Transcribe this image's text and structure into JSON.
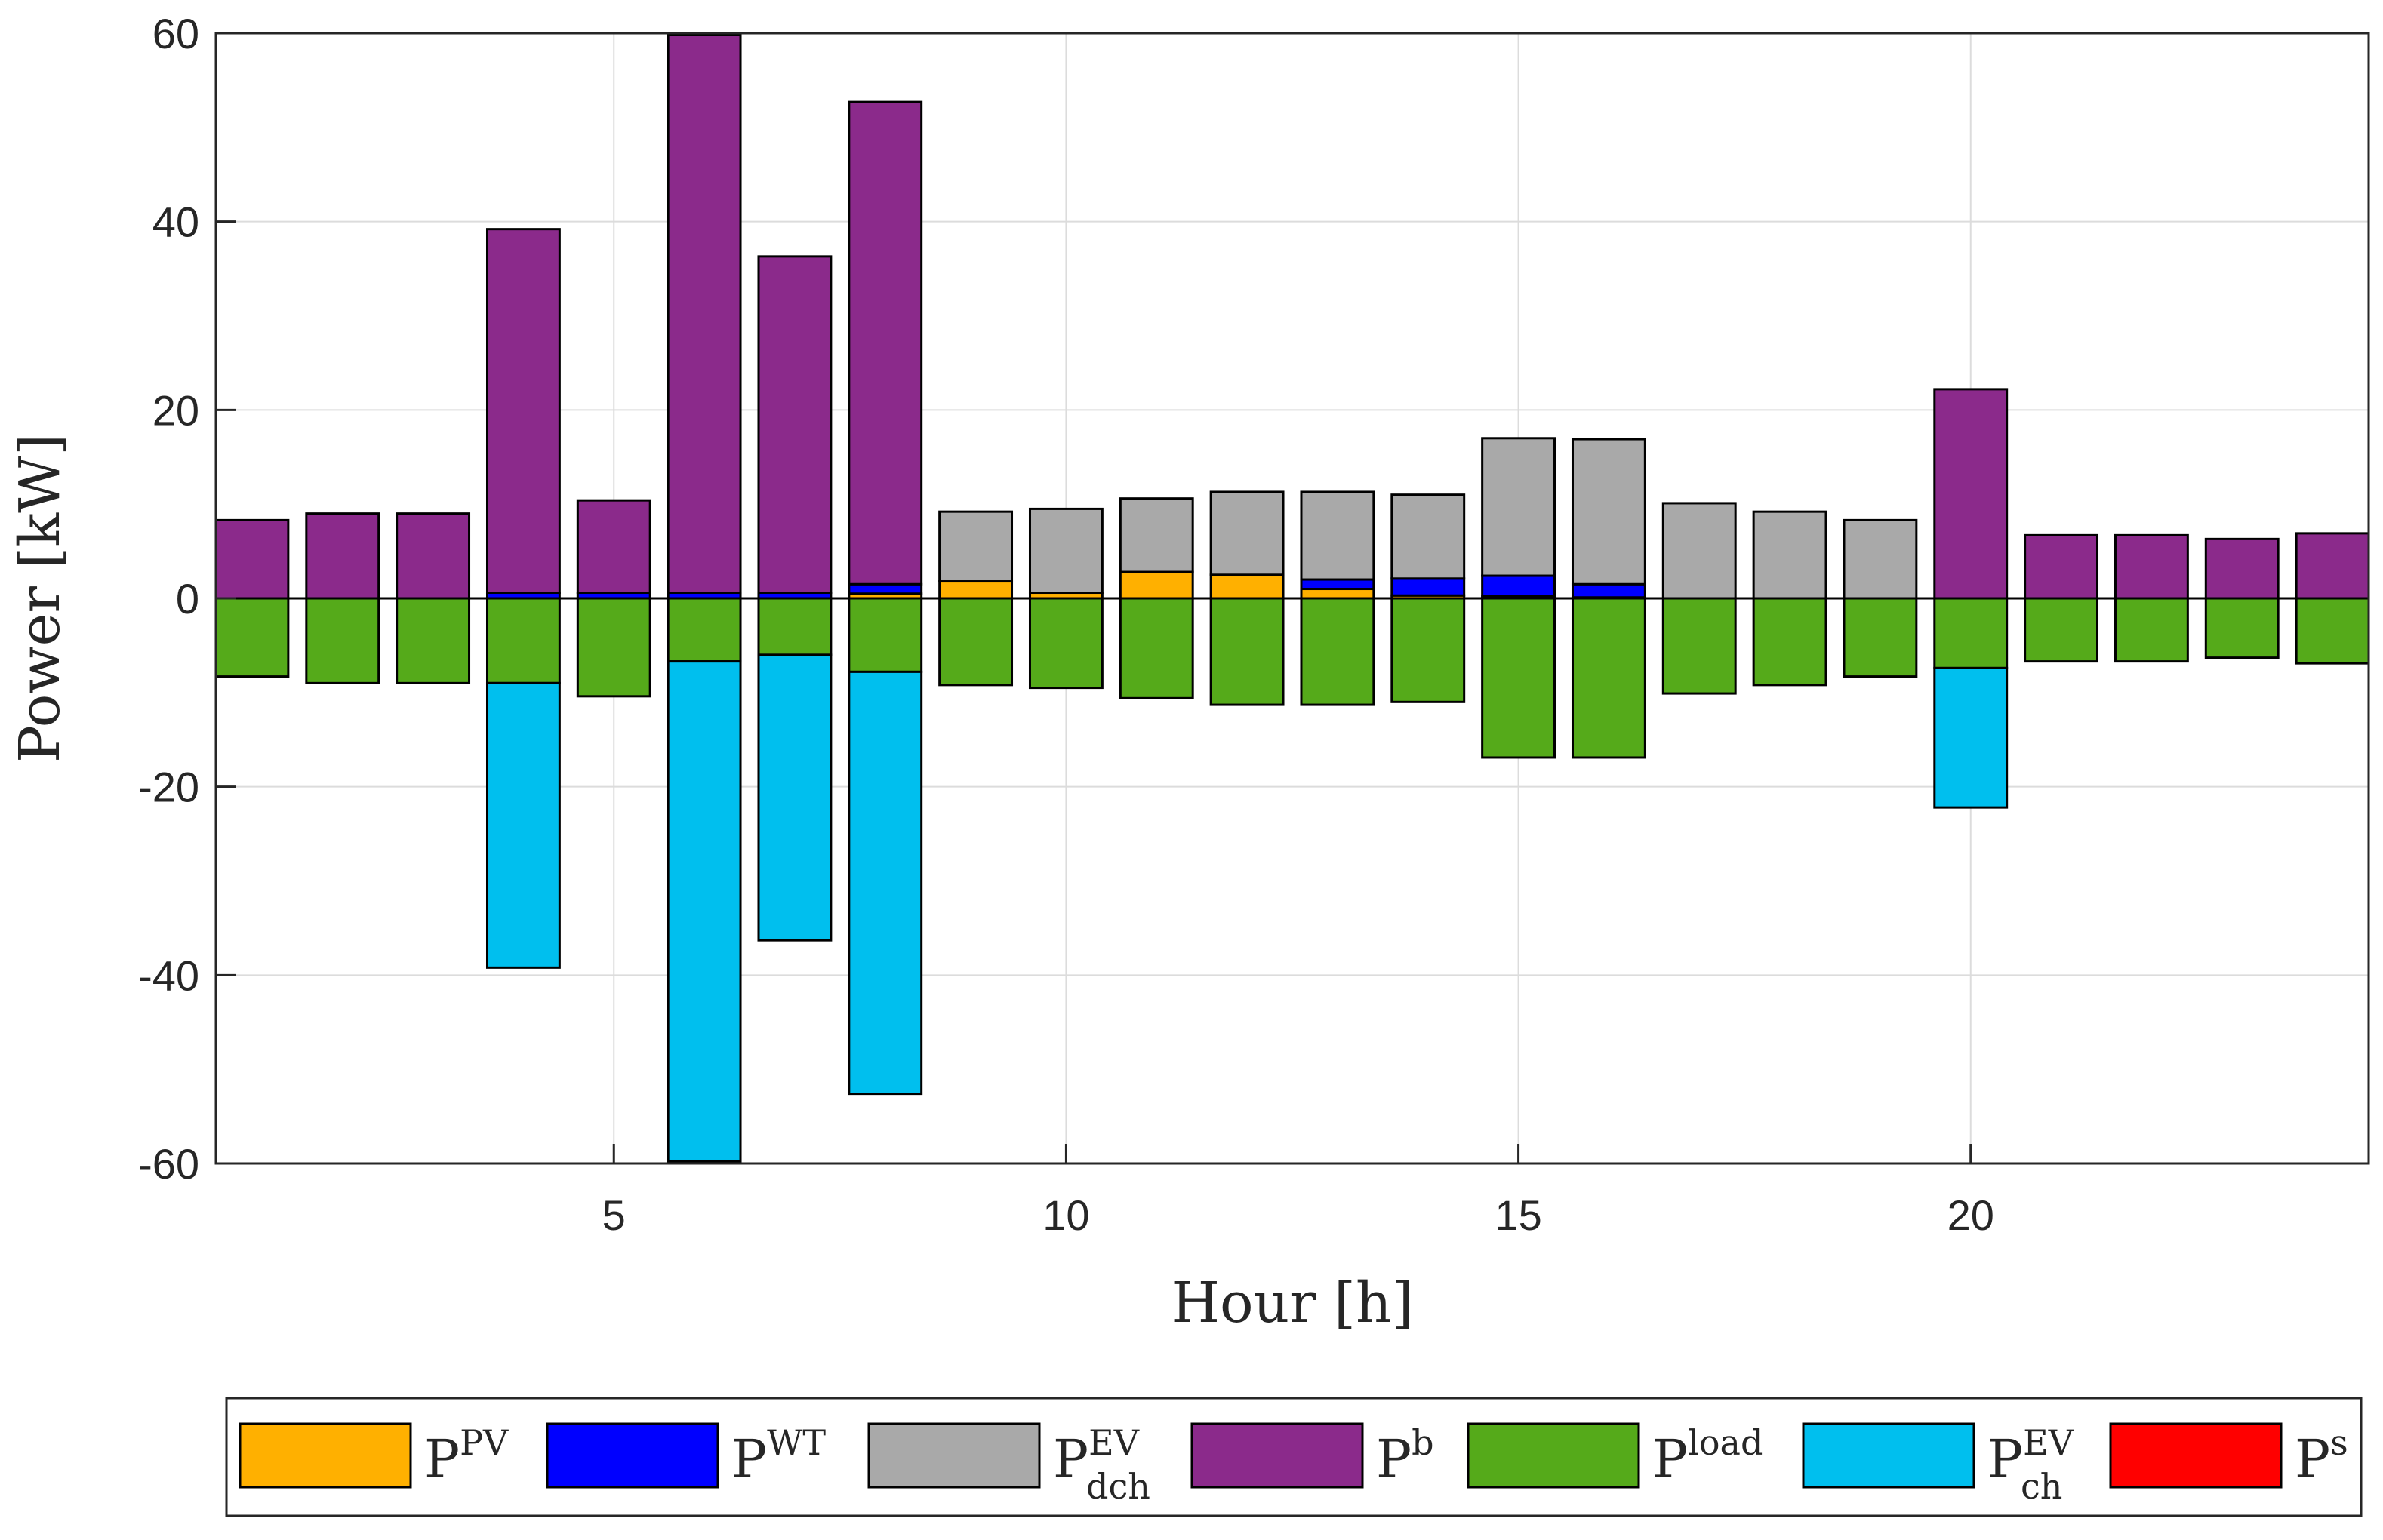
{
  "chart_data": {
    "type": "bar",
    "stacked": true,
    "title": "",
    "xlabel": "Hour [h]",
    "ylabel": "Power [kW]",
    "ylim": [
      -60,
      60
    ],
    "xlim": [
      0.6,
      24.4
    ],
    "yticks": [
      60,
      40,
      20,
      0,
      -20,
      -40,
      -60
    ],
    "ytick_labels": [
      "60",
      "40",
      "20",
      "0",
      "-20",
      "-40",
      "-60"
    ],
    "xticks": [
      5,
      10,
      15,
      20
    ],
    "xtick_labels": [
      "5",
      "10",
      "15",
      "20"
    ],
    "grid": true,
    "legend_position": "bottom",
    "x": [
      1,
      2,
      3,
      4,
      5,
      6,
      7,
      8,
      9,
      10,
      11,
      12,
      13,
      14,
      15,
      16,
      17,
      18,
      19,
      20,
      21,
      22,
      23,
      24
    ],
    "series": [
      {
        "key": "pv",
        "name": "P",
        "sup": "PV",
        "sub": "",
        "color": "#FFB000",
        "values": [
          0,
          0,
          0,
          0,
          0,
          0,
          0,
          0.5,
          1.8,
          0.6,
          2.8,
          2.5,
          1.0,
          0.3,
          0.2,
          0.1,
          0,
          0,
          0,
          0,
          0,
          0,
          0,
          0
        ]
      },
      {
        "key": "wt",
        "name": "P",
        "sup": "WT",
        "sub": "",
        "color": "#0000FF",
        "values": [
          0,
          0,
          0,
          0.6,
          0.6,
          0.6,
          0.6,
          1.0,
          0,
          0,
          0,
          0,
          1.0,
          1.8,
          2.2,
          1.4,
          0,
          0,
          0,
          0,
          0,
          0,
          0,
          0
        ]
      },
      {
        "key": "ev_dch",
        "name": "P",
        "sup": "EV",
        "sub": "dch",
        "color": "#A9A9A9",
        "values": [
          0,
          0,
          0,
          0,
          0,
          0,
          0,
          0,
          7.4,
          8.9,
          7.8,
          8.8,
          9.3,
          8.9,
          14.6,
          15.4,
          10.1,
          9.2,
          8.3,
          0,
          0,
          0,
          0,
          0
        ]
      },
      {
        "key": "b",
        "name": "P",
        "sup": "b",
        "sub": "",
        "color": "#8B2A8B",
        "values": [
          8.3,
          9.0,
          9.0,
          38.6,
          9.8,
          59.2,
          35.7,
          51.2,
          0,
          0,
          0,
          0,
          0,
          0,
          0,
          0,
          0,
          0,
          0,
          22.2,
          6.7,
          6.7,
          6.3,
          6.9
        ]
      },
      {
        "key": "load",
        "name": "P",
        "sup": "load",
        "sub": "",
        "color": "#55AA1A",
        "values": [
          -8.3,
          -9.0,
          -9.0,
          -9.0,
          -10.4,
          -6.7,
          -6.0,
          -7.8,
          -9.2,
          -9.5,
          -10.6,
          -11.3,
          -11.3,
          -11.0,
          -16.9,
          -16.9,
          -10.1,
          -9.2,
          -8.3,
          -7.4,
          -6.7,
          -6.7,
          -6.3,
          -6.9
        ]
      },
      {
        "key": "ev_ch",
        "name": "P",
        "sup": "EV",
        "sub": "ch",
        "color": "#00BFEE",
        "values": [
          0,
          0,
          0,
          -30.2,
          0,
          -53.1,
          -30.3,
          -44.8,
          0,
          0,
          0,
          0,
          0,
          0,
          0,
          0,
          0,
          0,
          0,
          -14.8,
          0,
          0,
          0,
          0
        ]
      },
      {
        "key": "s",
        "name": "P",
        "sup": "s",
        "sub": "",
        "color": "#FF0000",
        "values": [
          0,
          0,
          0,
          0,
          0,
          0,
          0,
          0,
          0,
          0,
          0,
          0,
          0,
          0,
          0,
          0,
          0,
          0,
          0,
          0,
          0,
          0,
          0,
          0
        ]
      }
    ]
  }
}
